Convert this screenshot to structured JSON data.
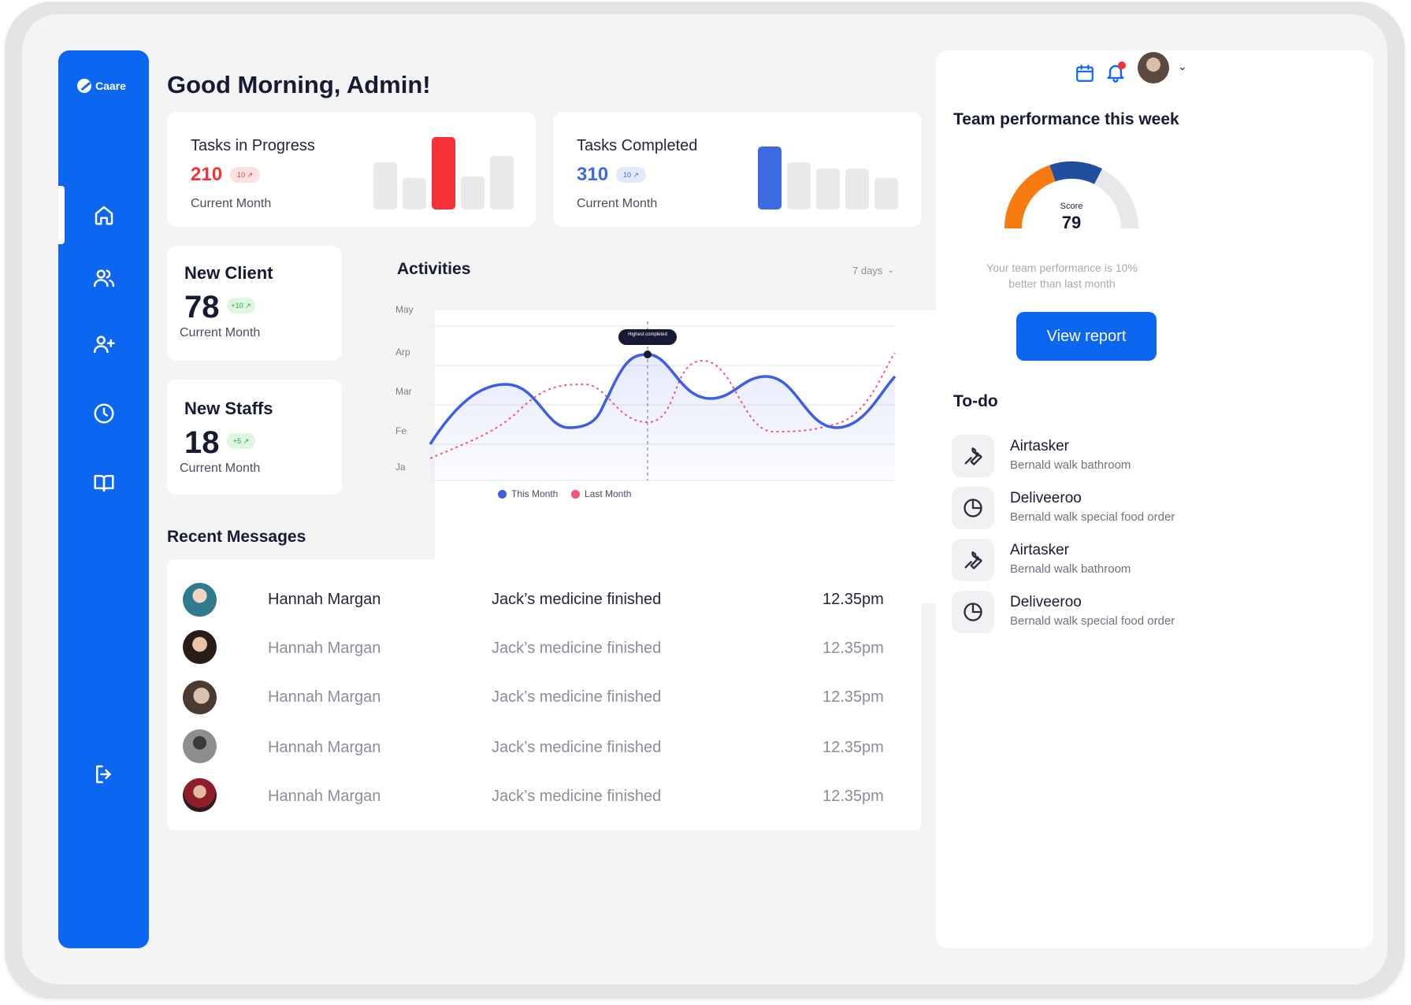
{
  "app": {
    "logo_text": "Caare"
  },
  "header": {
    "greeting": "Good Morning, Admin!"
  },
  "sidebar": {
    "items": [
      {
        "icon": "home-icon",
        "active": true
      },
      {
        "icon": "users-icon",
        "active": false
      },
      {
        "icon": "user-plus-icon",
        "active": false
      },
      {
        "icon": "clock-icon",
        "active": false
      },
      {
        "icon": "book-icon",
        "active": false
      }
    ],
    "logout_icon": "logout-icon"
  },
  "tasks_in_progress": {
    "title": "Tasks in Progress",
    "value": "210",
    "badge": "10 ↗",
    "subtitle": "Current Month",
    "color": "#f5313a",
    "highlight_bar_index": 2
  },
  "tasks_completed": {
    "title": "Tasks Completed",
    "value": "310",
    "badge": "10 ↗",
    "subtitle": "Current Month",
    "color": "#3d6ae0",
    "highlight_bar_index": 0
  },
  "new_client": {
    "title": "New Client",
    "value": "78",
    "badge": "+10 ↗",
    "subtitle": "Current Month"
  },
  "new_staffs": {
    "title": "New Staffs",
    "value": "18",
    "badge": "+5 ↗",
    "subtitle": "Current Month"
  },
  "activities": {
    "title": "Activities",
    "range_select": "7 days",
    "tooltip": "Highest completed",
    "y_labels": [
      "May",
      "Arp",
      "Mar",
      "Fe",
      "Ja"
    ],
    "legend": [
      {
        "label": "This Month",
        "color": "#3d5fe0"
      },
      {
        "label": "Last Month",
        "color": "#f0567a"
      }
    ]
  },
  "recent_messages": {
    "title": "Recent Messages",
    "rows": [
      {
        "name": "Hannah Margan",
        "message": "Jack’s medicine finished",
        "time": "12.35pm"
      },
      {
        "name": "Hannah Margan",
        "message": "Jack’s medicine finished",
        "time": "12.35pm"
      },
      {
        "name": "Hannah Margan",
        "message": "Jack’s medicine finished",
        "time": "12.35pm"
      },
      {
        "name": "Hannah Margan",
        "message": "Jack’s medicine finished",
        "time": "12.35pm"
      },
      {
        "name": "Hannah Margan",
        "message": "Jack’s medicine finished",
        "time": "12.35pm"
      }
    ]
  },
  "performance": {
    "title": "Team performance this week",
    "score_label": "Score",
    "score": "79",
    "note_line1": "Your team performance is 10%",
    "note_line2": "better than last month",
    "button": "View report",
    "colors": {
      "primary": "#f77b10",
      "secondary": "#1f4f9e",
      "track": "#e8e8ea"
    }
  },
  "todo": {
    "title": "To-do",
    "items": [
      {
        "icon": "wrench-icon",
        "title": "Airtasker",
        "subtitle": "Bernald walk bathroom"
      },
      {
        "icon": "pie-chart-icon",
        "title": "Deliveeroo",
        "subtitle": "Bernald walk special food order"
      },
      {
        "icon": "wrench-icon",
        "title": "Airtasker",
        "subtitle": "Bernald walk bathroom"
      },
      {
        "icon": "pie-chart-icon",
        "title": "Deliveeroo",
        "subtitle": "Bernald walk special food order"
      }
    ]
  }
}
